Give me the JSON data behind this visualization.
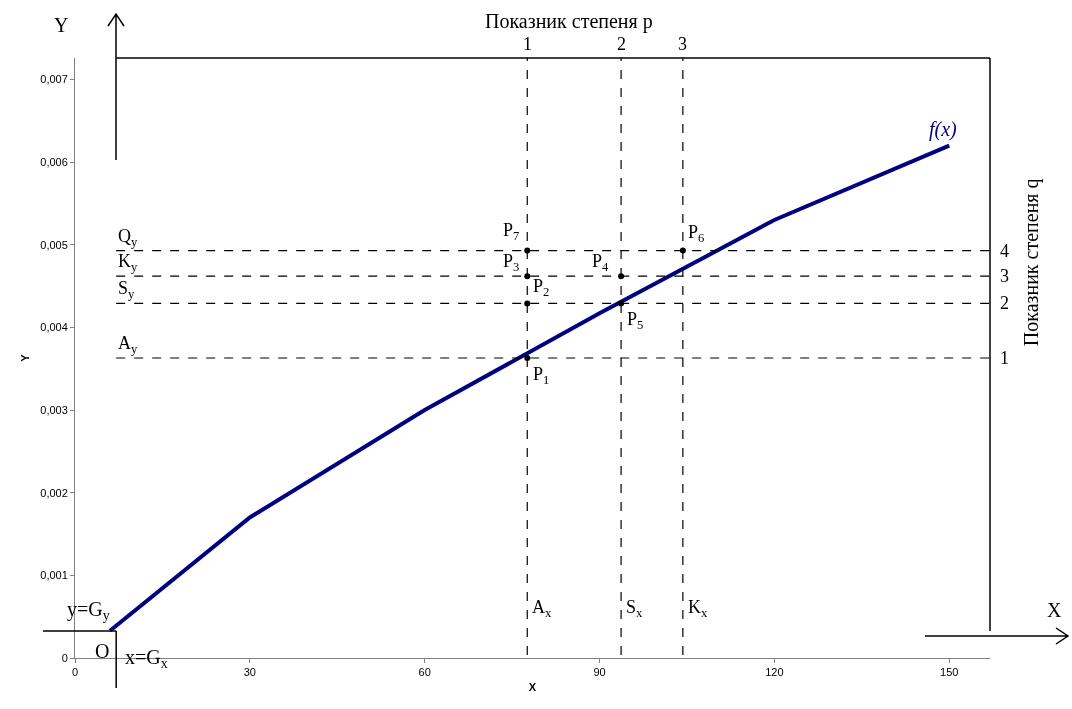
{
  "chart_data": {
    "type": "line",
    "xlabel": "X",
    "ylabel": "Y",
    "xlim": [
      0,
      157
    ],
    "xticks": [
      0,
      30,
      60,
      90,
      120,
      150
    ],
    "ylim": [
      0,
      0.00726
    ],
    "yticks": [
      0,
      {
        "value": 0.001,
        "label": "0,001"
      },
      {
        "value": 0.002,
        "label": "0,002"
      },
      {
        "value": 0.003,
        "label": "0,003"
      },
      {
        "value": 0.004,
        "label": "0,004"
      },
      {
        "value": 0.005,
        "label": "0,005"
      },
      {
        "value": 0.006,
        "label": "0,006"
      },
      {
        "value": 0.007,
        "label": "0,007"
      }
    ],
    "series": [
      {
        "name": "f(x)",
        "color": "#000080",
        "x": [
          6,
          30,
          60,
          90,
          120,
          150
        ],
        "values": [
          0.00033,
          0.0017,
          0.003,
          0.00417,
          0.0053,
          0.0062
        ]
      },
      {
        "type": "scatter",
        "color": "#000000",
        "marker": "circle",
        "x": [
          77.6,
          77.6,
          77.6,
          93.7,
          93.7,
          104.3,
          77.6
        ],
        "values": [
          0.00363,
          0.00429,
          0.00462,
          0.00462,
          0.00429,
          0.00493,
          0.00493
        ]
      }
    ],
    "ref_lines": [
      {
        "axis": "x",
        "value": 77.6,
        "label": "A$_{x}$",
        "line_style": "dashed",
        "color": "#000000"
      },
      {
        "axis": "x",
        "value": 93.7,
        "label": "S$_{x}$",
        "line_style": "dashed",
        "color": "#000000"
      },
      {
        "axis": "x",
        "value": 104.3,
        "label": "K$_{x}$",
        "line_style": "dashed",
        "color": "#000000"
      },
      {
        "axis": "y",
        "value": 0.00363,
        "label": "A$_{y}$",
        "line_style": "dashed",
        "color": "#000000"
      },
      {
        "axis": "y",
        "value": 0.00429,
        "label": "S$_{y}$",
        "line_style": "dashed",
        "color": "#000000"
      },
      {
        "axis": "y",
        "value": 0.00462,
        "label": "K$_{y}$",
        "line_style": "dashed",
        "color": "#000000"
      },
      {
        "axis": "y",
        "value": 0.00493,
        "label": "Q$_{y}$",
        "line_style": "dashed",
        "color": "#000000"
      }
    ],
    "annotations": [
      {
        "text": "P$_{1}$",
        "x": 77.6,
        "y": 0.00363
      },
      {
        "text": "P$_{2}$",
        "x": 77.6,
        "y": 0.00429
      },
      {
        "text": "P$_{3}$",
        "x": 77.6,
        "y": 0.00462
      },
      {
        "text": "P$_{4}$",
        "x": 93.7,
        "y": 0.00462
      },
      {
        "text": "P$_{5}$",
        "x": 93.7,
        "y": 0.00429
      },
      {
        "text": "P$_{6}$",
        "x": 104.3,
        "y": 0.00493
      },
      {
        "text": "P$_{7}$",
        "x": 77.6,
        "y": 0.00493
      },
      {
        "text": "1",
        "x": 77.6,
        "y": 0.00726
      },
      {
        "text": "2",
        "x": 93.7,
        "y": 0.00726
      },
      {
        "text": "3",
        "x": 104.3,
        "y": 0.00726
      },
      {
        "text": "1",
        "x": 157,
        "y": 0.00363
      },
      {
        "text": "2",
        "x": 157,
        "y": 0.00429
      },
      {
        "text": "3",
        "x": 157,
        "y": 0.00462
      },
      {
        "text": "4",
        "x": 157,
        "y": 0.00493
      },
      "Y",
      "X",
      "O",
      "y=G$_{y}$",
      "x=G$_{x}$",
      "Показник степеня p",
      "Показник степеня q"
    ],
    "grid": false,
    "legend": false
  }
}
